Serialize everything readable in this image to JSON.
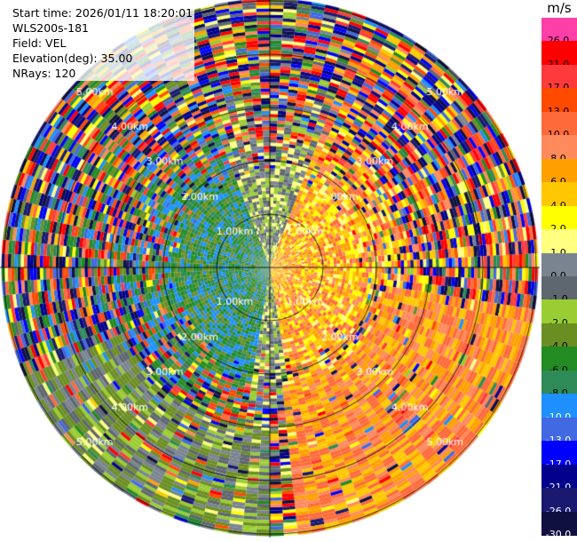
{
  "info": {
    "start_time": "Start time: 2026/01/11 18:20:01",
    "instrument": "WLS200s-181",
    "field": "Field: VEL",
    "elevation": "Elevation(deg): 35.00",
    "nrays": "NRays: 120"
  },
  "colorbar": {
    "unit": "m/s",
    "levels": [
      {
        "label": "26.0",
        "color": "#ff3fa8"
      },
      {
        "label": "21.0",
        "color": "#ff0000"
      },
      {
        "label": "17.0",
        "color": "#ff3a3a"
      },
      {
        "label": "13.0",
        "color": "#ff4a00"
      },
      {
        "label": "10.0",
        "color": "#ff6a3a"
      },
      {
        "label": "8.0",
        "color": "#ff8a5c"
      },
      {
        "label": "6.0",
        "color": "#ffa000"
      },
      {
        "label": "4.0",
        "color": "#ffc800"
      },
      {
        "label": "2.0",
        "color": "#ffff00"
      },
      {
        "label": "1.0",
        "color": "#ffff80"
      },
      {
        "label": "0.0",
        "color": "#7a8490"
      },
      {
        "label": "-1.0",
        "color": "#5e6670"
      },
      {
        "label": "-2.0",
        "color": "#9acd32"
      },
      {
        "label": "-4.0",
        "color": "#6b8e23"
      },
      {
        "label": "-6.0",
        "color": "#228b22"
      },
      {
        "label": "-8.0",
        "color": "#2e8b57"
      },
      {
        "label": "-10.0",
        "color": "#1e90ff"
      },
      {
        "label": "-13.0",
        "color": "#4169e1"
      },
      {
        "label": "-17.0",
        "color": "#0000ff"
      },
      {
        "label": "-21.0",
        "color": "#00008b"
      },
      {
        "label": "-26.0",
        "color": "#191970"
      },
      {
        "label": "-30.0",
        "color": "#101040"
      }
    ]
  },
  "chart_data": {
    "type": "heatmap",
    "projection": "polar PPI",
    "rays": 120,
    "range_rings_km": [
      1,
      2,
      3,
      4,
      5
    ],
    "range_ring_labels": [
      "1.00km",
      "2.00km",
      "3.00km",
      "4.00km",
      "5.00km"
    ],
    "value_unit": "m/s",
    "vmin": -30,
    "vmax": 26,
    "pattern": {
      "sector_sw_deg": [
        180,
        270
      ],
      "sector_sw_value_range_m_s": [
        -4,
        0
      ],
      "sector_se_deg": [
        90,
        180
      ],
      "sector_se_value_range_m_s": [
        4,
        13
      ],
      "inner_east_value_range_m_s": [
        1,
        6
      ],
      "inner_west_value_range_m_s": [
        -10,
        -2
      ],
      "outer_noise_value_range_m_s": [
        -30,
        26
      ]
    }
  }
}
